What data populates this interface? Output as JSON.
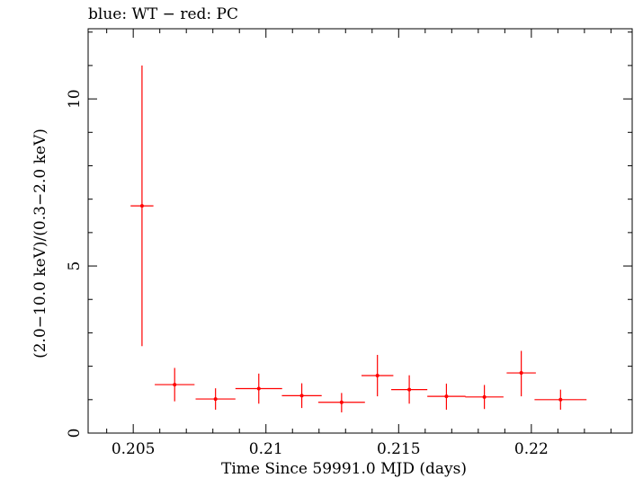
{
  "chart_data": {
    "type": "scatter",
    "title": "blue: WT − red: PC",
    "xlabel": "Time Since 59991.0 MJD (days)",
    "ylabel": "(2.0−10.0 keV)/(0.3−2.0 keV)",
    "xlim": [
      0.2033,
      0.2238
    ],
    "ylim": [
      0,
      12.1
    ],
    "xticks": [
      0.205,
      0.21,
      0.215,
      0.22
    ],
    "xtick_labels": [
      "0.205",
      "0.21",
      "0.215",
      "0.22"
    ],
    "yticks": [
      0,
      5,
      10
    ],
    "ytick_labels": [
      "0",
      "5",
      "10"
    ],
    "grid": false,
    "series": [
      {
        "color": "#ff0000",
        "points": [
          {
            "x": 0.20533,
            "xerr": 0.00043,
            "y": 6.8,
            "ylo": 2.6,
            "yhi": 11.0
          },
          {
            "x": 0.20656,
            "xerr": 0.00075,
            "y": 1.45,
            "ylo": 0.95,
            "yhi": 1.95
          },
          {
            "x": 0.2081,
            "xerr": 0.00075,
            "y": 1.02,
            "ylo": 0.7,
            "yhi": 1.34
          },
          {
            "x": 0.20973,
            "xerr": 0.00088,
            "y": 1.33,
            "ylo": 0.88,
            "yhi": 1.78
          },
          {
            "x": 0.21135,
            "xerr": 0.00075,
            "y": 1.12,
            "ylo": 0.75,
            "yhi": 1.49
          },
          {
            "x": 0.21285,
            "xerr": 0.00088,
            "y": 0.92,
            "ylo": 0.62,
            "yhi": 1.2
          },
          {
            "x": 0.2142,
            "xerr": 0.0006,
            "y": 1.72,
            "ylo": 1.1,
            "yhi": 2.34
          },
          {
            "x": 0.2154,
            "xerr": 0.00068,
            "y": 1.3,
            "ylo": 0.88,
            "yhi": 1.73
          },
          {
            "x": 0.2168,
            "xerr": 0.00072,
            "y": 1.1,
            "ylo": 0.7,
            "yhi": 1.48
          },
          {
            "x": 0.21823,
            "xerr": 0.00072,
            "y": 1.08,
            "ylo": 0.72,
            "yhi": 1.44
          },
          {
            "x": 0.21962,
            "xerr": 0.00055,
            "y": 1.8,
            "ylo": 1.1,
            "yhi": 2.46
          },
          {
            "x": 0.2211,
            "xerr": 0.00098,
            "y": 1.0,
            "ylo": 0.7,
            "yhi": 1.3
          }
        ]
      }
    ]
  }
}
